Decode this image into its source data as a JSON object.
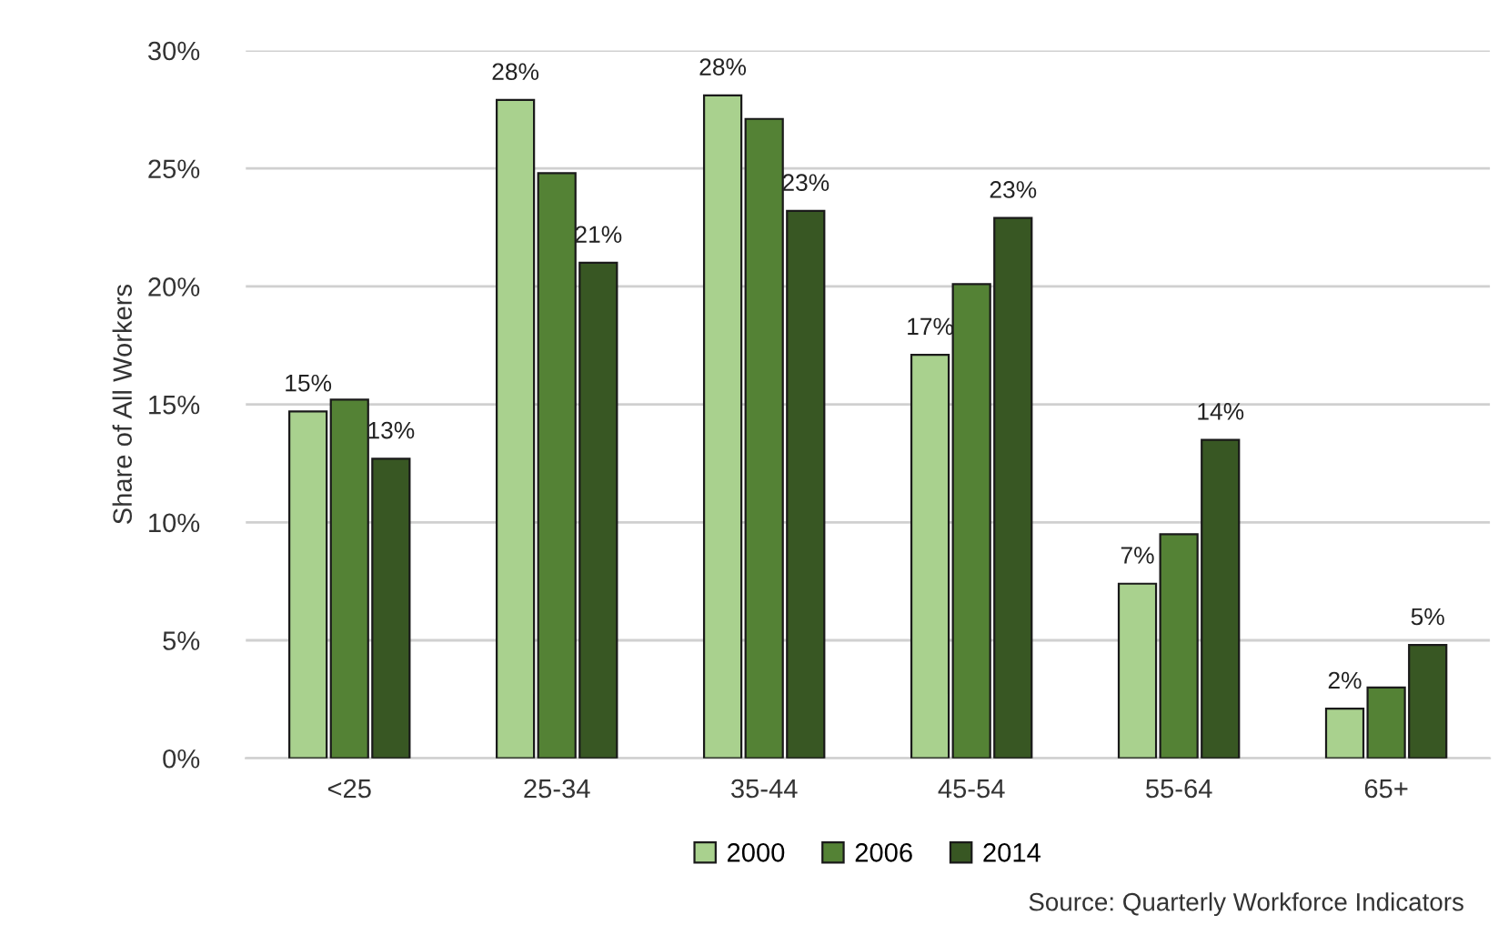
{
  "chart_data": {
    "type": "bar",
    "ylabel": "Share of All Workers",
    "categories": [
      "<25",
      "25-34",
      "35-44",
      "45-54",
      "55-64",
      "65+"
    ],
    "series": [
      {
        "name": "2000",
        "color": "#a9d18e",
        "values": [
          14.7,
          27.9,
          28.1,
          17.1,
          7.4,
          2.1
        ],
        "value_labels": [
          "15%",
          "28%",
          "28%",
          "17%",
          "7%",
          "2%"
        ]
      },
      {
        "name": "2006",
        "color": "#548235",
        "values": [
          15.2,
          24.8,
          27.1,
          20.1,
          9.5,
          3.0
        ]
      },
      {
        "name": "2014",
        "color": "#385723",
        "values": [
          12.7,
          21.0,
          23.2,
          22.9,
          13.5,
          4.8
        ],
        "value_labels": [
          "13%",
          "21%",
          "23%",
          "23%",
          "14%",
          "5%"
        ]
      }
    ],
    "ylim": [
      0,
      30
    ],
    "yticks": [
      {
        "value": 0,
        "label": "0%"
      },
      {
        "value": 5,
        "label": "5%"
      },
      {
        "value": 10,
        "label": "10%"
      },
      {
        "value": 15,
        "label": "15%"
      },
      {
        "value": 20,
        "label": "20%"
      },
      {
        "value": 25,
        "label": "25%"
      },
      {
        "value": 30,
        "label": "30%"
      }
    ],
    "grid": "y",
    "legend": "bottom",
    "annotations": [
      "Source: Quarterly Workforce Indicators"
    ]
  }
}
